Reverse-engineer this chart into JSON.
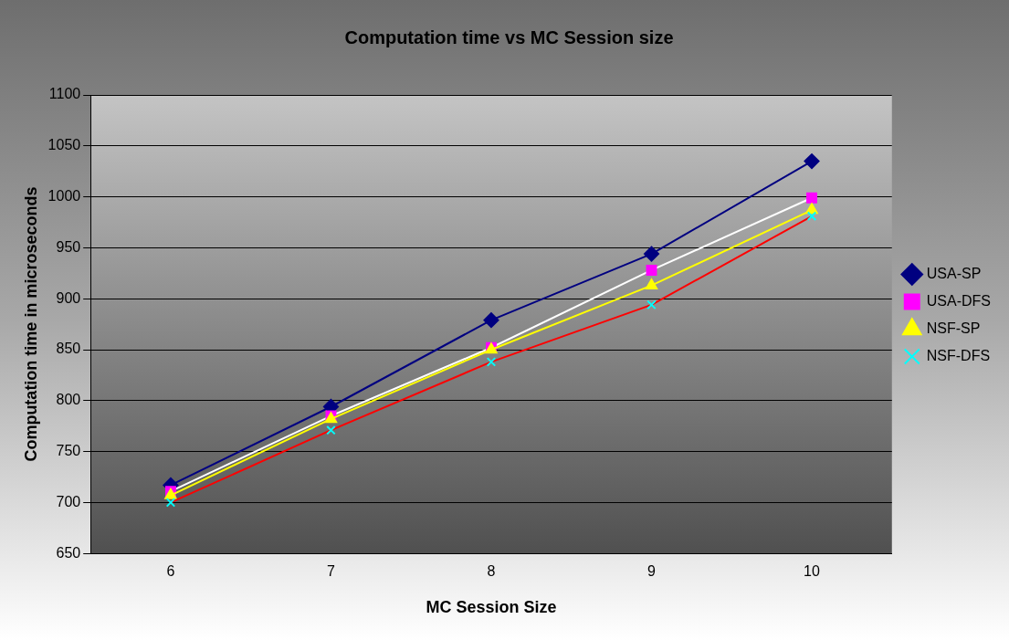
{
  "chart_data": {
    "type": "line",
    "title": "Computation time vs MC Session size",
    "xlabel": "MC Session Size",
    "ylabel": "Computation time in microseconds",
    "categories": [
      "6",
      "7",
      "8",
      "9",
      "10"
    ],
    "series": [
      {
        "name": "USA-SP",
        "color": "#000080",
        "colors": [
          "#000080",
          "#000080",
          "#000080",
          "#000080",
          "#000080"
        ],
        "marker": "diamond",
        "values": [
          717,
          794,
          879,
          944,
          1035
        ]
      },
      {
        "name": "USA-DFS",
        "color": "#ffffff",
        "colors": [
          "#ff00ff",
          "#ff00ff",
          "#ff00ff",
          "#ff00ff",
          "#ff00ff"
        ],
        "marker": "square",
        "values": [
          711,
          785,
          852,
          928,
          999
        ]
      },
      {
        "name": "NSF-SP",
        "color": "#ffff00",
        "colors": [
          "#ffff00",
          "#ffff00",
          "#ffff00",
          "#ffff00",
          "#ffff00"
        ],
        "marker": "triangle",
        "values": [
          707,
          782,
          850,
          913,
          987
        ]
      },
      {
        "name": "NSF-DFS",
        "color": "#ff0000",
        "colors": [
          "#00ffff",
          "#00ffff",
          "#00ffff",
          "#00ffff",
          "#00ffff"
        ],
        "marker": "cross",
        "values": [
          700,
          771,
          838,
          894,
          981
        ]
      }
    ],
    "ylim": [
      650,
      1100
    ],
    "yticks": [
      650,
      700,
      750,
      800,
      850,
      900,
      950,
      1000,
      1050,
      1100
    ],
    "grid": "y",
    "legend": "right"
  }
}
